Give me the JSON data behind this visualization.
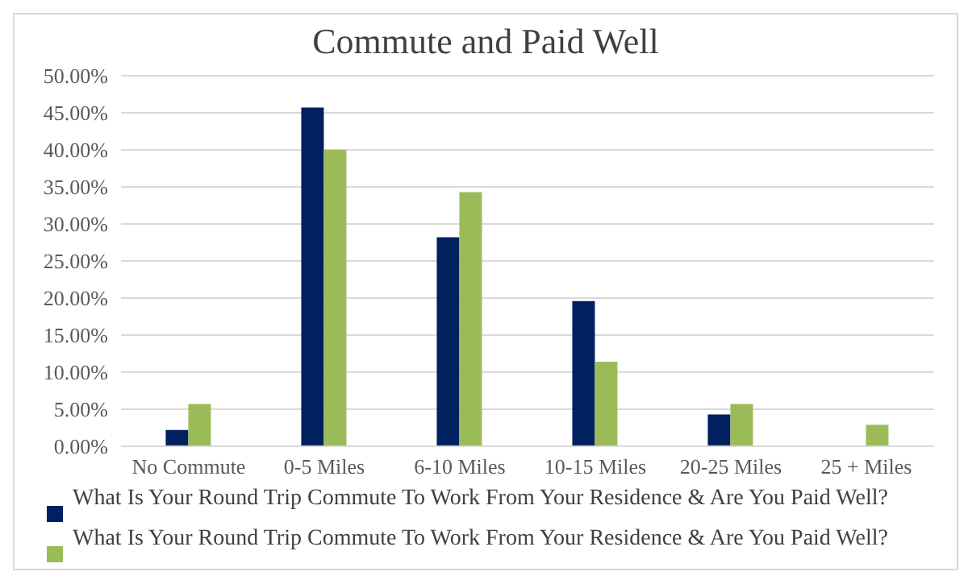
{
  "chart_data": {
    "type": "bar",
    "title": "Commute and Paid Well",
    "categories": [
      "No Commute",
      "0-5 Miles",
      "6-10 Miles",
      "10-15 Miles",
      "20-25 Miles",
      "25 + Miles"
    ],
    "series": [
      {
        "name": "What Is Your Round Trip Commute To Work From Your Residence & Are You Paid Well?",
        "color": "#002060",
        "values": [
          2.2,
          45.7,
          28.2,
          19.6,
          4.3,
          0
        ]
      },
      {
        "name": "What Is Your Round Trip Commute To Work From Your Residence & Are You Paid Well?",
        "color": "#9bbb59",
        "values": [
          5.7,
          40.0,
          34.3,
          11.4,
          5.7,
          2.9
        ]
      }
    ],
    "ylim": [
      0,
      50
    ],
    "yticks": [
      {
        "value": 0,
        "label": "0.00%"
      },
      {
        "value": 5,
        "label": "5.00%"
      },
      {
        "value": 10,
        "label": "10.00%"
      },
      {
        "value": 15,
        "label": "15.00%"
      },
      {
        "value": 20,
        "label": "20.00%"
      },
      {
        "value": 25,
        "label": "25.00%"
      },
      {
        "value": 30,
        "label": "30.00%"
      },
      {
        "value": 35,
        "label": "35.00%"
      },
      {
        "value": 40,
        "label": "40.00%"
      },
      {
        "value": 45,
        "label": "45.00%"
      },
      {
        "value": 50,
        "label": "50.00%"
      }
    ],
    "grid": "y",
    "legend": "bottom"
  }
}
